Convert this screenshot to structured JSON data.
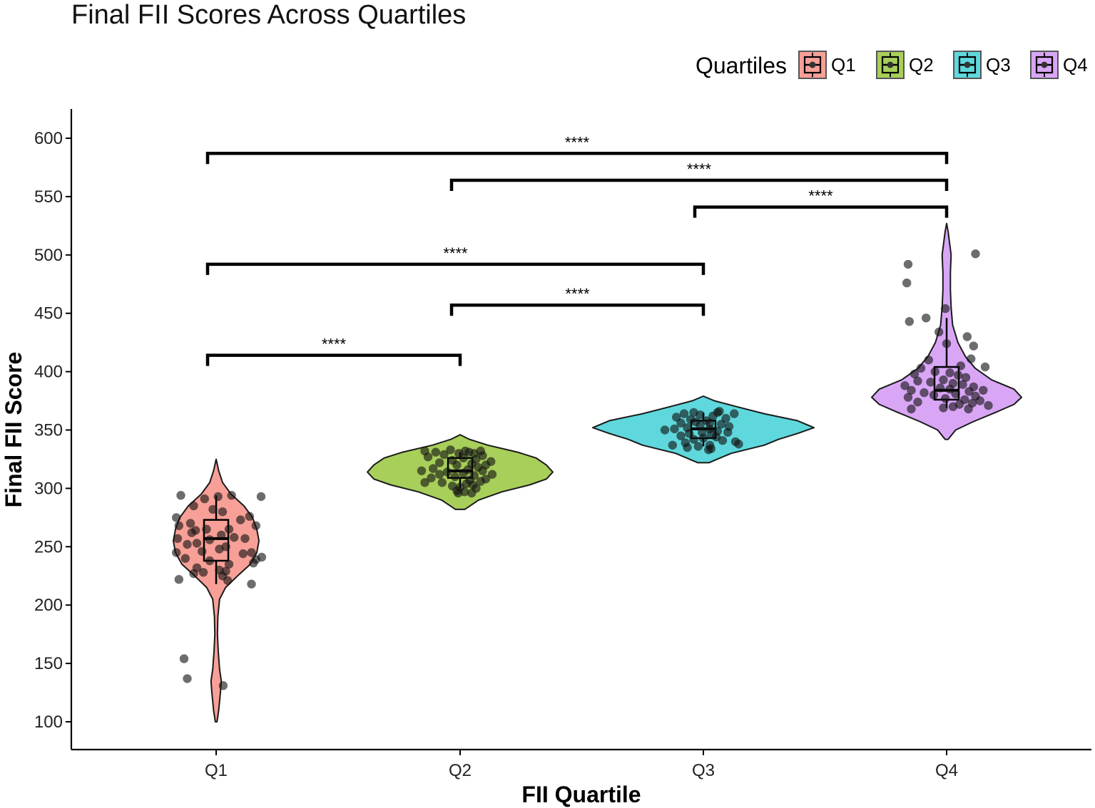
{
  "chart_data": {
    "type": "violin",
    "title": "Final FII Scores Across Quartiles",
    "xlabel": "FII Quartile",
    "ylabel": "Final FII Score",
    "categories": [
      "Q1",
      "Q2",
      "Q3",
      "Q4"
    ],
    "ylim": [
      77,
      624
    ],
    "yticks": [
      100,
      150,
      200,
      250,
      300,
      350,
      400,
      450,
      500,
      550,
      600
    ],
    "legend": {
      "title": "Quartiles",
      "position": "top-right",
      "entries": [
        {
          "label": "Q1",
          "color": "#F8A097"
        },
        {
          "label": "Q2",
          "color": "#A8CF5A"
        },
        {
          "label": "Q3",
          "color": "#5ED8DC"
        },
        {
          "label": "Q4",
          "color": "#D9A6F6"
        }
      ]
    },
    "series": [
      {
        "name": "Q1",
        "color": "#F8A097",
        "box": {
          "q1": 238,
          "median": 257,
          "q3": 273,
          "whisker_low": 218,
          "whisker_high": 294
        },
        "violin": [
          [
            100,
            0.02
          ],
          [
            110,
            0.06
          ],
          [
            125,
            0.1
          ],
          [
            135,
            0.12
          ],
          [
            145,
            0.08
          ],
          [
            160,
            0.05
          ],
          [
            175,
            0.03
          ],
          [
            190,
            0.04
          ],
          [
            205,
            0.08
          ],
          [
            215,
            0.22
          ],
          [
            225,
            0.5
          ],
          [
            235,
            0.8
          ],
          [
            245,
            0.95
          ],
          [
            255,
            1.0
          ],
          [
            265,
            0.95
          ],
          [
            275,
            0.85
          ],
          [
            285,
            0.65
          ],
          [
            295,
            0.35
          ],
          [
            305,
            0.15
          ],
          [
            315,
            0.06
          ],
          [
            325,
            0.0
          ]
        ],
        "points": [
          [
            294,
            -0.55
          ],
          [
            291,
            -0.18
          ],
          [
            293,
            0.03
          ],
          [
            294,
            0.24
          ],
          [
            293,
            0.7
          ],
          [
            285,
            -0.35
          ],
          [
            282,
            -0.05
          ],
          [
            280,
            0.1
          ],
          [
            276,
            0.52
          ],
          [
            275,
            -0.62
          ],
          [
            273,
            0.38
          ],
          [
            270,
            -0.4
          ],
          [
            268,
            -0.58
          ],
          [
            268,
            0.62
          ],
          [
            265,
            0.2
          ],
          [
            265,
            -0.15
          ],
          [
            264,
            -0.32
          ],
          [
            262,
            -0.38
          ],
          [
            260,
            0.08
          ],
          [
            258,
            0.28
          ],
          [
            257,
            -0.6
          ],
          [
            257,
            0.45
          ],
          [
            256,
            -0.1
          ],
          [
            253,
            -0.3
          ],
          [
            252,
            -0.45
          ],
          [
            250,
            0.15
          ],
          [
            248,
            0.05
          ],
          [
            246,
            -0.22
          ],
          [
            245,
            0.55
          ],
          [
            245,
            -0.62
          ],
          [
            244,
            0.42
          ],
          [
            241,
            0.71
          ],
          [
            240,
            -0.48
          ],
          [
            239,
            0.62
          ],
          [
            238,
            -0.1
          ],
          [
            236,
            0.58
          ],
          [
            235,
            0.2
          ],
          [
            232,
            -0.3
          ],
          [
            230,
            0.05
          ],
          [
            229,
            0.15
          ],
          [
            228,
            -0.2
          ],
          [
            227,
            -0.35
          ],
          [
            225,
            0.1
          ],
          [
            222,
            -0.58
          ],
          [
            221,
            0.18
          ],
          [
            218,
            0.55
          ],
          [
            154,
            -0.5
          ],
          [
            137,
            -0.45
          ],
          [
            131,
            0.11
          ]
        ]
      },
      {
        "name": "Q2",
        "color": "#A8CF5A",
        "box": {
          "q1": 309,
          "median": 315,
          "q3": 326,
          "whisker_low": 300,
          "whisker_high": 331
        },
        "violin": [
          [
            282,
            0.05
          ],
          [
            290,
            0.2
          ],
          [
            297,
            0.45
          ],
          [
            303,
            0.75
          ],
          [
            308,
            0.93
          ],
          [
            314,
            1.0
          ],
          [
            320,
            0.93
          ],
          [
            326,
            0.82
          ],
          [
            331,
            0.62
          ],
          [
            337,
            0.3
          ],
          [
            342,
            0.1
          ],
          [
            346,
            0.0
          ]
        ],
        "points": [
          [
            333,
            -0.15
          ],
          [
            332,
            -0.55
          ],
          [
            332,
            0.08
          ],
          [
            332,
            0.32
          ],
          [
            331,
            -0.38
          ],
          [
            331,
            0.14
          ],
          [
            330,
            -0.02
          ],
          [
            330,
            0.22
          ],
          [
            329,
            -0.25
          ],
          [
            328,
            0.35
          ],
          [
            327,
            -0.5
          ],
          [
            326,
            0.05
          ],
          [
            325,
            0.25
          ],
          [
            324,
            -0.12
          ],
          [
            323,
            0.48
          ],
          [
            322,
            -0.32
          ],
          [
            321,
            0.18
          ],
          [
            320,
            -0.05
          ],
          [
            320,
            0.4
          ],
          [
            318,
            0.28
          ],
          [
            317,
            -0.42
          ],
          [
            316,
            0.12
          ],
          [
            315,
            0.35
          ],
          [
            315,
            -0.6
          ],
          [
            314,
            -0.2
          ],
          [
            313,
            0.05
          ],
          [
            312,
            0.5
          ],
          [
            312,
            -0.32
          ],
          [
            311,
            0.22
          ],
          [
            310,
            -0.08
          ],
          [
            309,
            -0.45
          ],
          [
            308,
            0.4
          ],
          [
            307,
            0.15
          ],
          [
            306,
            0.32
          ],
          [
            305,
            -0.28
          ],
          [
            305,
            -0.55
          ],
          [
            304,
            0.1
          ],
          [
            303,
            0.2
          ],
          [
            302,
            -0.12
          ],
          [
            301,
            0.0
          ],
          [
            300,
            0.25
          ],
          [
            298,
            -0.05
          ],
          [
            297,
            0.07
          ],
          [
            296,
            -0.03
          ],
          [
            296,
            0.18
          ]
        ]
      },
      {
        "name": "Q3",
        "color": "#5ED8DC",
        "box": {
          "q1": 343,
          "median": 351,
          "q3": 358,
          "whisker_low": 336,
          "whisker_high": 365
        },
        "violin": [
          [
            322,
            0.05
          ],
          [
            330,
            0.25
          ],
          [
            337,
            0.55
          ],
          [
            342,
            0.68
          ],
          [
            347,
            0.85
          ],
          [
            352,
            1.0
          ],
          [
            358,
            0.85
          ],
          [
            364,
            0.55
          ],
          [
            370,
            0.3
          ],
          [
            375,
            0.1
          ],
          [
            379,
            0.0
          ]
        ],
        "points": [
          [
            366,
            0.25
          ],
          [
            365,
            0.22
          ],
          [
            365,
            -0.15
          ],
          [
            364,
            -0.3
          ],
          [
            364,
            0.48
          ],
          [
            363,
            -0.05
          ],
          [
            362,
            0.15
          ],
          [
            361,
            -0.42
          ],
          [
            360,
            0.35
          ],
          [
            359,
            -0.2
          ],
          [
            358,
            0.05
          ],
          [
            357,
            -0.12
          ],
          [
            356,
            -0.35
          ],
          [
            356,
            0.1
          ],
          [
            355,
            0.28
          ],
          [
            354,
            -0.05
          ],
          [
            353,
            0.4
          ],
          [
            352,
            -0.25
          ],
          [
            351,
            0.1
          ],
          [
            351,
            -0.45
          ],
          [
            350,
            -0.6
          ],
          [
            349,
            0.22
          ],
          [
            348,
            -0.02
          ],
          [
            348,
            0.38
          ],
          [
            347,
            -0.22
          ],
          [
            346,
            0.12
          ],
          [
            345,
            -0.35
          ],
          [
            344,
            0.2
          ],
          [
            343,
            0.0
          ],
          [
            342,
            -0.15
          ],
          [
            341,
            0.3
          ],
          [
            340,
            0.5
          ],
          [
            339,
            -0.28
          ],
          [
            338,
            0.55
          ],
          [
            337,
            -0.48
          ],
          [
            337,
            0.1
          ],
          [
            336,
            -0.08
          ],
          [
            335,
            -0.25
          ],
          [
            334,
            0.12
          ],
          [
            333,
            0.08
          ]
        ]
      },
      {
        "name": "Q4",
        "color": "#D9A6F6",
        "box": {
          "q1": 376,
          "median": 384,
          "q3": 404,
          "whisker_low": 369,
          "whisker_high": 446
        },
        "violin": [
          [
            342,
            0.02
          ],
          [
            350,
            0.12
          ],
          [
            357,
            0.35
          ],
          [
            365,
            0.65
          ],
          [
            372,
            0.9
          ],
          [
            378,
            1.0
          ],
          [
            385,
            0.9
          ],
          [
            393,
            0.6
          ],
          [
            403,
            0.38
          ],
          [
            413,
            0.25
          ],
          [
            425,
            0.15
          ],
          [
            440,
            0.08
          ],
          [
            455,
            0.06
          ],
          [
            470,
            0.05
          ],
          [
            485,
            0.05
          ],
          [
            500,
            0.06
          ],
          [
            510,
            0.04
          ],
          [
            520,
            0.02
          ],
          [
            527,
            0.0
          ]
        ],
        "points": [
          [
            501,
            0.45
          ],
          [
            492,
            -0.6
          ],
          [
            476,
            -0.62
          ],
          [
            454,
            -0.02
          ],
          [
            446,
            -0.32
          ],
          [
            443,
            -0.58
          ],
          [
            434,
            -0.12
          ],
          [
            430,
            0.32
          ],
          [
            424,
            0.0
          ],
          [
            422,
            0.42
          ],
          [
            411,
            0.38
          ],
          [
            410,
            -0.28
          ],
          [
            405,
            0.22
          ],
          [
            404,
            0.6
          ],
          [
            403,
            -0.4
          ],
          [
            400,
            -0.18
          ],
          [
            399,
            0.05
          ],
          [
            398,
            -0.5
          ],
          [
            397,
            0.18
          ],
          [
            395,
            0.3
          ],
          [
            393,
            -0.05
          ],
          [
            392,
            -0.45
          ],
          [
            391,
            -0.25
          ],
          [
            390,
            0.1
          ],
          [
            389,
            0.25
          ],
          [
            388,
            -0.65
          ],
          [
            387,
            0.42
          ],
          [
            386,
            -0.1
          ],
          [
            385,
            0.05
          ],
          [
            384,
            -0.55
          ],
          [
            384,
            0.57
          ],
          [
            383,
            0.35
          ],
          [
            382,
            -0.35
          ],
          [
            381,
            0.14
          ],
          [
            380,
            -0.2
          ],
          [
            379,
            0.45
          ],
          [
            378,
            -0.6
          ],
          [
            377,
            -0.02
          ],
          [
            376,
            0.28
          ],
          [
            375,
            0.52
          ],
          [
            374,
            -0.45
          ],
          [
            373,
            0.4
          ],
          [
            372,
            0.2
          ],
          [
            371,
            0.65
          ],
          [
            370,
            0.1
          ],
          [
            369,
            -0.05
          ],
          [
            368,
            -0.55
          ],
          [
            368,
            0.34
          ]
        ]
      }
    ],
    "significance": [
      {
        "from": "Q1",
        "to": "Q2",
        "label": "****",
        "y": 414
      },
      {
        "from": "Q2",
        "to": "Q3",
        "label": "****",
        "y": 457
      },
      {
        "from": "Q1",
        "to": "Q3",
        "label": "****",
        "y": 492
      },
      {
        "from": "Q3",
        "to": "Q4",
        "label": "****",
        "y": 541
      },
      {
        "from": "Q2",
        "to": "Q4",
        "label": "****",
        "y": 564
      },
      {
        "from": "Q1",
        "to": "Q4",
        "label": "****",
        "y": 587
      }
    ]
  }
}
